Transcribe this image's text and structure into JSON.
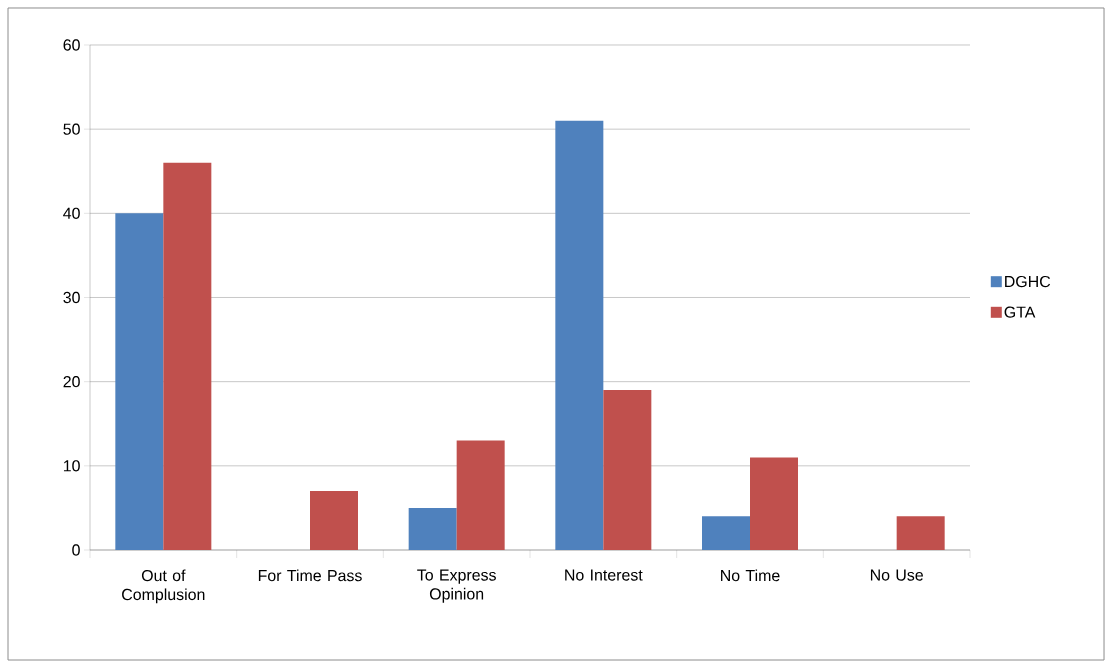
{
  "chart_data": {
    "type": "bar",
    "categories": [
      "Out of Complusion",
      "For Time Pass",
      "To Express Opinion",
      "No Interest",
      "No Time",
      "No Use"
    ],
    "series": [
      {
        "name": "DGHC",
        "color": "#4f81bd",
        "values": [
          40,
          0,
          5,
          51,
          4,
          0
        ]
      },
      {
        "name": "GTA",
        "color": "#c0504d",
        "values": [
          46,
          7,
          13,
          19,
          11,
          4
        ]
      }
    ],
    "ylim": [
      0,
      60
    ],
    "yticks": [
      0,
      10,
      20,
      30,
      40,
      50,
      60
    ],
    "grid": "y",
    "legend": "right"
  }
}
